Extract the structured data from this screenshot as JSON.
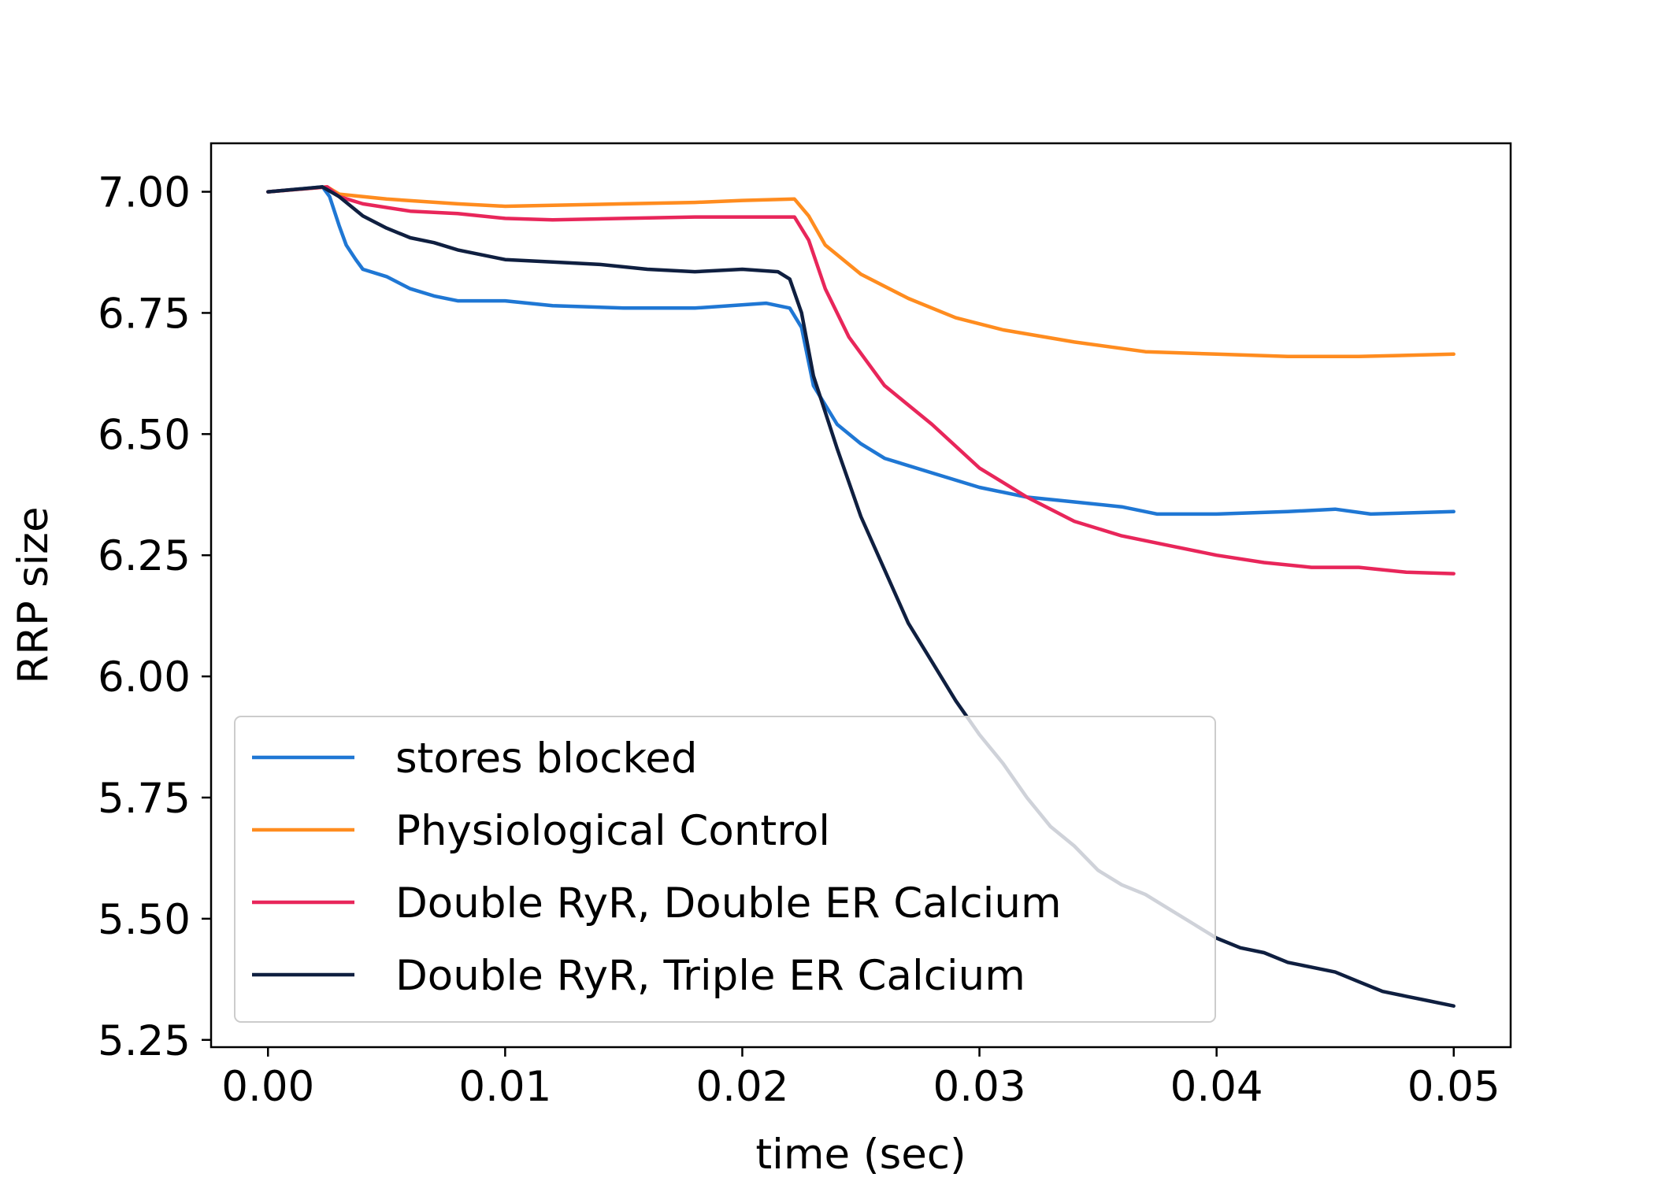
{
  "chart_data": {
    "type": "line",
    "title": "",
    "xlabel": "time (sec)",
    "ylabel": "RRP size",
    "xlim": [
      -0.0024,
      0.0524
    ],
    "ylim": [
      5.235,
      7.1
    ],
    "x_ticks": [
      "0.00",
      "0.01",
      "0.02",
      "0.03",
      "0.04",
      "0.05"
    ],
    "y_ticks": [
      "7.00",
      "6.75",
      "6.50",
      "6.25",
      "6.00",
      "5.75",
      "5.50",
      "5.25"
    ],
    "grid": false,
    "legend_position": "lower-left",
    "series": [
      {
        "name": "stores blocked",
        "color": "#1f77d4",
        "points": [
          [
            0.0,
            7.0
          ],
          [
            0.0023,
            7.01
          ],
          [
            0.0026,
            6.99
          ],
          [
            0.003,
            6.93
          ],
          [
            0.0033,
            6.89
          ],
          [
            0.0037,
            6.86
          ],
          [
            0.004,
            6.84
          ],
          [
            0.005,
            6.825
          ],
          [
            0.006,
            6.8
          ],
          [
            0.007,
            6.785
          ],
          [
            0.008,
            6.775
          ],
          [
            0.01,
            6.775
          ],
          [
            0.012,
            6.765
          ],
          [
            0.015,
            6.76
          ],
          [
            0.018,
            6.76
          ],
          [
            0.021,
            6.77
          ],
          [
            0.022,
            6.76
          ],
          [
            0.0225,
            6.72
          ],
          [
            0.023,
            6.6
          ],
          [
            0.024,
            6.52
          ],
          [
            0.025,
            6.48
          ],
          [
            0.026,
            6.45
          ],
          [
            0.028,
            6.42
          ],
          [
            0.03,
            6.39
          ],
          [
            0.032,
            6.37
          ],
          [
            0.034,
            6.36
          ],
          [
            0.036,
            6.35
          ],
          [
            0.0375,
            6.335
          ],
          [
            0.04,
            6.335
          ],
          [
            0.043,
            6.34
          ],
          [
            0.045,
            6.345
          ],
          [
            0.0465,
            6.335
          ],
          [
            0.05,
            6.34
          ]
        ]
      },
      {
        "name": "Physiological Control",
        "color": "#ff8c1f",
        "points": [
          [
            0.0,
            7.0
          ],
          [
            0.0025,
            7.01
          ],
          [
            0.003,
            6.995
          ],
          [
            0.005,
            6.985
          ],
          [
            0.008,
            6.975
          ],
          [
            0.01,
            6.97
          ],
          [
            0.012,
            6.972
          ],
          [
            0.015,
            6.975
          ],
          [
            0.018,
            6.978
          ],
          [
            0.02,
            6.982
          ],
          [
            0.0222,
            6.985
          ],
          [
            0.0228,
            6.95
          ],
          [
            0.0235,
            6.89
          ],
          [
            0.025,
            6.83
          ],
          [
            0.027,
            6.78
          ],
          [
            0.029,
            6.74
          ],
          [
            0.031,
            6.715
          ],
          [
            0.034,
            6.69
          ],
          [
            0.037,
            6.67
          ],
          [
            0.04,
            6.665
          ],
          [
            0.043,
            6.66
          ],
          [
            0.046,
            6.66
          ],
          [
            0.05,
            6.665
          ]
        ]
      },
      {
        "name": "Double RyR, Double ER Calcium",
        "color": "#e8265a",
        "points": [
          [
            0.0,
            7.0
          ],
          [
            0.0025,
            7.01
          ],
          [
            0.003,
            6.99
          ],
          [
            0.004,
            6.975
          ],
          [
            0.006,
            6.96
          ],
          [
            0.008,
            6.955
          ],
          [
            0.01,
            6.945
          ],
          [
            0.012,
            6.942
          ],
          [
            0.015,
            6.945
          ],
          [
            0.018,
            6.948
          ],
          [
            0.0222,
            6.948
          ],
          [
            0.0228,
            6.9
          ],
          [
            0.0235,
            6.8
          ],
          [
            0.0245,
            6.7
          ],
          [
            0.026,
            6.6
          ],
          [
            0.028,
            6.52
          ],
          [
            0.03,
            6.43
          ],
          [
            0.032,
            6.37
          ],
          [
            0.034,
            6.32
          ],
          [
            0.036,
            6.29
          ],
          [
            0.038,
            6.27
          ],
          [
            0.04,
            6.25
          ],
          [
            0.042,
            6.235
          ],
          [
            0.044,
            6.225
          ],
          [
            0.046,
            6.225
          ],
          [
            0.048,
            6.215
          ],
          [
            0.05,
            6.212
          ]
        ]
      },
      {
        "name": "Double RyR, Triple ER Calcium",
        "color": "#0f1f40",
        "points": [
          [
            0.0,
            7.0
          ],
          [
            0.0023,
            7.01
          ],
          [
            0.003,
            6.99
          ],
          [
            0.004,
            6.95
          ],
          [
            0.005,
            6.925
          ],
          [
            0.006,
            6.905
          ],
          [
            0.007,
            6.895
          ],
          [
            0.008,
            6.88
          ],
          [
            0.009,
            6.87
          ],
          [
            0.01,
            6.86
          ],
          [
            0.012,
            6.855
          ],
          [
            0.014,
            6.85
          ],
          [
            0.016,
            6.84
          ],
          [
            0.018,
            6.835
          ],
          [
            0.02,
            6.84
          ],
          [
            0.0215,
            6.835
          ],
          [
            0.022,
            6.82
          ],
          [
            0.0225,
            6.75
          ],
          [
            0.023,
            6.62
          ],
          [
            0.024,
            6.47
          ],
          [
            0.025,
            6.33
          ],
          [
            0.026,
            6.22
          ],
          [
            0.027,
            6.11
          ],
          [
            0.028,
            6.03
          ],
          [
            0.029,
            5.95
          ],
          [
            0.03,
            5.88
          ],
          [
            0.031,
            5.82
          ],
          [
            0.032,
            5.75
          ],
          [
            0.033,
            5.69
          ],
          [
            0.034,
            5.65
          ],
          [
            0.035,
            5.6
          ],
          [
            0.036,
            5.57
          ],
          [
            0.037,
            5.55
          ],
          [
            0.038,
            5.52
          ],
          [
            0.039,
            5.49
          ],
          [
            0.04,
            5.46
          ],
          [
            0.041,
            5.44
          ],
          [
            0.042,
            5.43
          ],
          [
            0.043,
            5.41
          ],
          [
            0.044,
            5.4
          ],
          [
            0.045,
            5.39
          ],
          [
            0.046,
            5.37
          ],
          [
            0.047,
            5.35
          ],
          [
            0.048,
            5.34
          ],
          [
            0.049,
            5.33
          ],
          [
            0.05,
            5.32
          ]
        ]
      }
    ]
  }
}
